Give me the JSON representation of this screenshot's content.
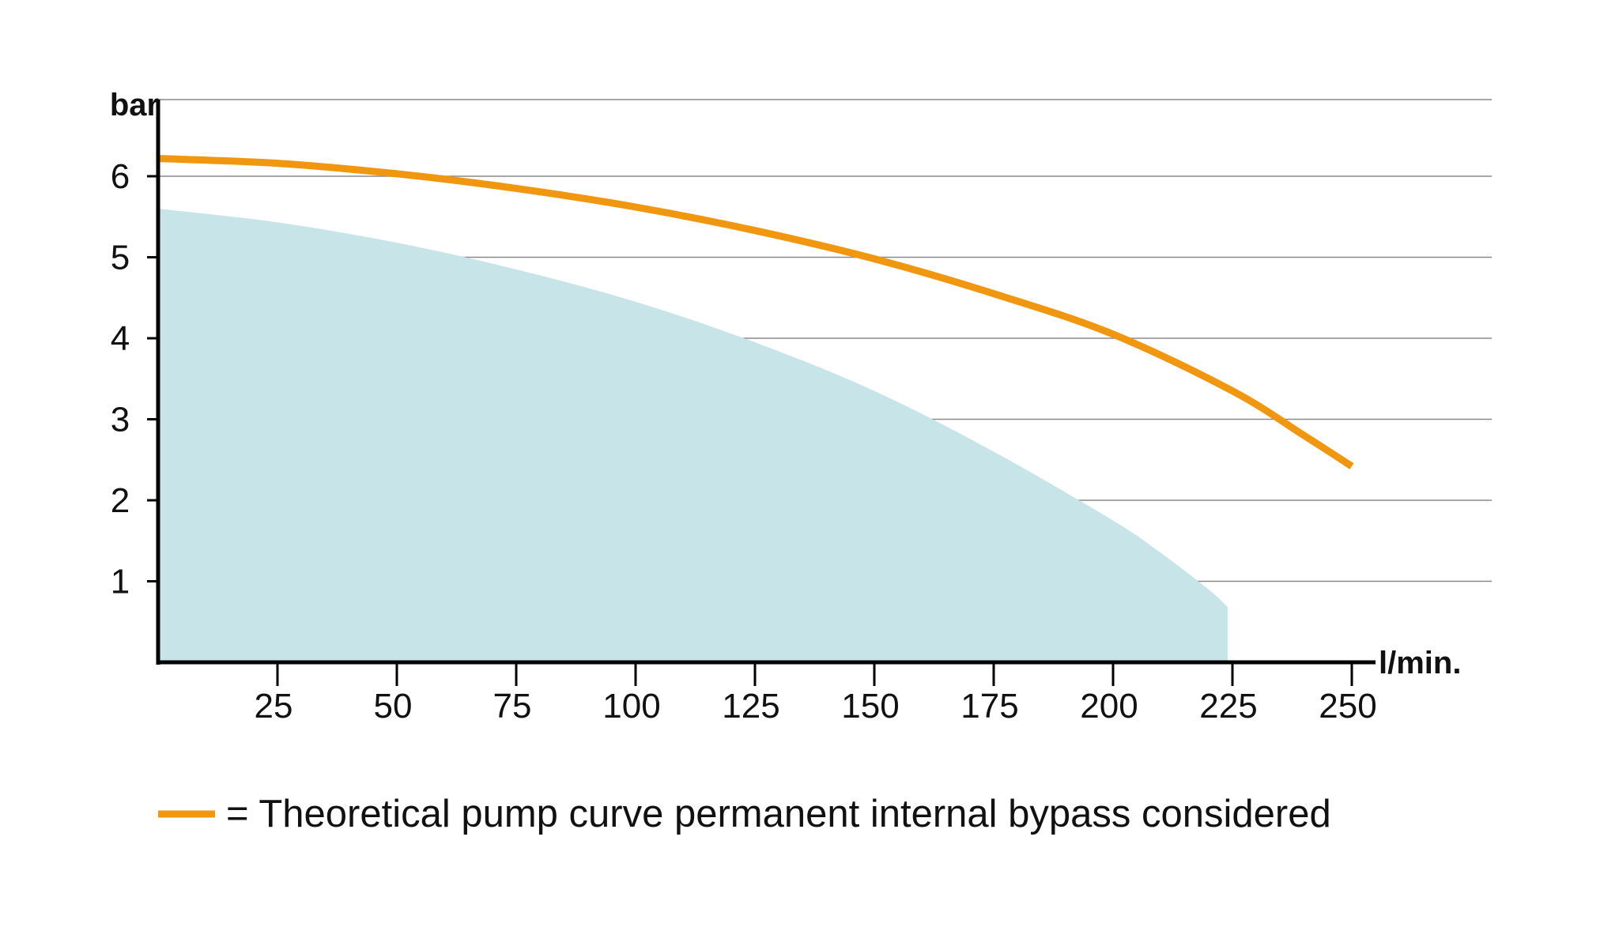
{
  "chart_data": {
    "type": "area",
    "xlabel": "l/min.",
    "ylabel": "bar",
    "xlim": [
      0,
      270
    ],
    "ylim": [
      0,
      7
    ],
    "xticks": [
      25,
      50,
      75,
      100,
      125,
      150,
      175,
      200,
      225,
      250
    ],
    "yticks": [
      1,
      2,
      3,
      4,
      5,
      6
    ],
    "grid": true,
    "legend_position": "bottom-left",
    "series": [
      {
        "name": "= Theoretical pump curve permanent internal bypass considered",
        "kind": "line",
        "color": "#F0960F",
        "x": [
          0,
          25,
          50,
          75,
          100,
          125,
          150,
          175,
          200,
          225,
          240,
          250
        ],
        "y": [
          6.22,
          6.16,
          6.03,
          5.85,
          5.62,
          5.33,
          4.98,
          4.55,
          4.05,
          3.35,
          2.8,
          2.42
        ]
      },
      {
        "kind": "area",
        "color": "#C7E4E8",
        "x": [
          0,
          25,
          50,
          75,
          100,
          125,
          150,
          175,
          200,
          210,
          220,
          224,
          224
        ],
        "y": [
          5.6,
          5.43,
          5.18,
          4.85,
          4.45,
          3.95,
          3.35,
          2.6,
          1.75,
          1.35,
          0.9,
          0.68,
          0
        ]
      }
    ]
  }
}
